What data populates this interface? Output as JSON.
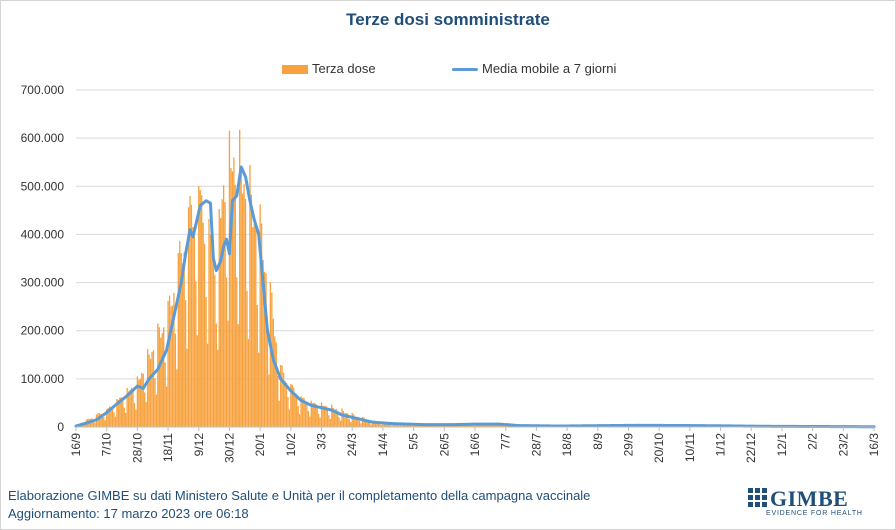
{
  "chart_data": {
    "type": "bar",
    "title": "Terze dosi somministrate",
    "xlabel": "",
    "ylabel": "",
    "ylim": [
      0,
      700000
    ],
    "yticks": [
      0,
      100000,
      200000,
      300000,
      400000,
      500000,
      600000,
      700000
    ],
    "ytick_labels": [
      "0",
      "100.000",
      "200.000",
      "300.000",
      "400.000",
      "500.000",
      "600.000",
      "700.000"
    ],
    "x_start": "2021-09-16",
    "x_end": "2023-03-16",
    "x_tick_labels": [
      "16/9",
      "7/10",
      "28/10",
      "18/11",
      "9/12",
      "30/12",
      "20/1",
      "10/2",
      "3/3",
      "24/3",
      "14/4",
      "5/5",
      "26/5",
      "16/6",
      "7/7",
      "28/7",
      "18/8",
      "8/9",
      "29/9",
      "20/10",
      "10/11",
      "1/12",
      "22/12",
      "12/1",
      "2/2",
      "23/2",
      "16/3"
    ],
    "grid": true,
    "legend_position": "top",
    "series": [
      {
        "name": "Terza dose",
        "kind": "bar",
        "color": "#f7a23e",
        "x_start": "2021-09-16",
        "interval_days": 1,
        "anchors_day_value": [
          [
            0,
            3000
          ],
          [
            21,
            35000
          ],
          [
            42,
            90000
          ],
          [
            63,
            230000
          ],
          [
            77,
            430000
          ],
          [
            84,
            475000
          ],
          [
            96,
            350000
          ],
          [
            102,
            520000
          ],
          [
            108,
            545000
          ],
          [
            114,
            510000
          ],
          [
            120,
            450000
          ],
          [
            126,
            400000
          ],
          [
            133,
            270000
          ],
          [
            140,
            120000
          ],
          [
            147,
            85000
          ],
          [
            154,
            60000
          ],
          [
            161,
            50000
          ],
          [
            175,
            40000
          ],
          [
            189,
            25000
          ],
          [
            203,
            12000
          ],
          [
            217,
            8000
          ],
          [
            231,
            6000
          ],
          [
            252,
            6000
          ],
          [
            273,
            7000
          ],
          [
            290,
            6000
          ],
          [
            300,
            3000
          ],
          [
            320,
            2000
          ],
          [
            385,
            4000
          ],
          [
            420,
            3000
          ],
          [
            440,
            2500
          ],
          [
            470,
            1500
          ],
          [
            546,
            500
          ]
        ]
      },
      {
        "name": "Media mobile a 7 giorni",
        "kind": "line",
        "color": "#5b9bd5",
        "x_start": "2021-09-16",
        "interval_days": 1,
        "anchors_day_value": [
          [
            0,
            2000
          ],
          [
            7,
            8000
          ],
          [
            14,
            15000
          ],
          [
            21,
            30000
          ],
          [
            28,
            48000
          ],
          [
            35,
            65000
          ],
          [
            42,
            85000
          ],
          [
            46,
            80000
          ],
          [
            50,
            100000
          ],
          [
            56,
            120000
          ],
          [
            62,
            160000
          ],
          [
            67,
            230000
          ],
          [
            72,
            300000
          ],
          [
            75,
            360000
          ],
          [
            78,
            410000
          ],
          [
            80,
            395000
          ],
          [
            82,
            420000
          ],
          [
            85,
            460000
          ],
          [
            89,
            470000
          ],
          [
            92,
            465000
          ],
          [
            94,
            350000
          ],
          [
            96,
            325000
          ],
          [
            99,
            345000
          ],
          [
            101,
            375000
          ],
          [
            103,
            390000
          ],
          [
            105,
            360000
          ],
          [
            107,
            470000
          ],
          [
            110,
            480000
          ],
          [
            113,
            540000
          ],
          [
            116,
            520000
          ],
          [
            119,
            470000
          ],
          [
            122,
            430000
          ],
          [
            125,
            400000
          ],
          [
            128,
            300000
          ],
          [
            131,
            200000
          ],
          [
            135,
            140000
          ],
          [
            140,
            100000
          ],
          [
            147,
            75000
          ],
          [
            154,
            55000
          ],
          [
            161,
            45000
          ],
          [
            168,
            40000
          ],
          [
            175,
            35000
          ],
          [
            182,
            25000
          ],
          [
            189,
            20000
          ],
          [
            196,
            15000
          ],
          [
            203,
            10000
          ],
          [
            217,
            7000
          ],
          [
            238,
            5000
          ],
          [
            259,
            5000
          ],
          [
            273,
            6000
          ],
          [
            290,
            6000
          ],
          [
            303,
            3000
          ],
          [
            330,
            2000
          ],
          [
            385,
            3500
          ],
          [
            420,
            3000
          ],
          [
            440,
            2500
          ],
          [
            470,
            1500
          ],
          [
            546,
            500
          ]
        ]
      }
    ]
  },
  "footer": {
    "line1": "Elaborazione GIMBE su dati Ministero Salute e Unità per il completamento della campagna vaccinale",
    "line2": "Aggiornamento: 17 marzo 2023 ore 06:18"
  },
  "logo": {
    "name": "GIMBE",
    "tagline": "EVIDENCE FOR HEALTH"
  }
}
